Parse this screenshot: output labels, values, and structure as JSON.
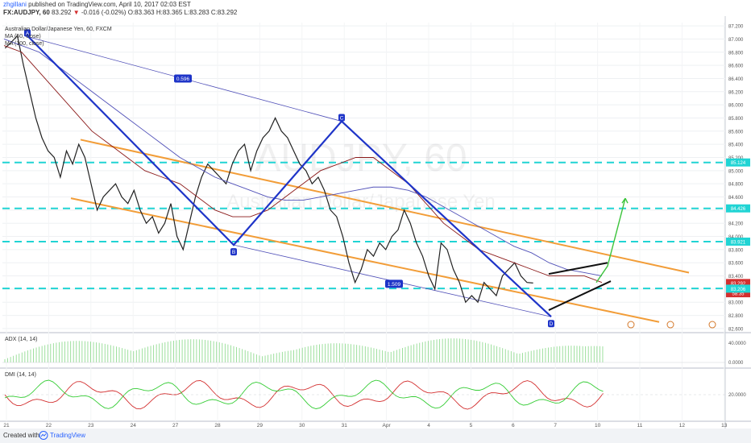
{
  "header": {
    "user": "zhgillani",
    "published_text": "published on TradingView.com, April 10, 2017 02:03 EST",
    "symbol_line": "FX:AUDJPY, 60",
    "price": "83.292",
    "change": "-0.016 (-0.02%)",
    "ohlc": "O:83.363 H:83.365 L:83.283 C:83.292"
  },
  "legend": {
    "instrument": "Australian Dollar/Japanese Yen, 60, FXCM",
    "ma1": "MA (50, close)",
    "ma2": "MA (100, close)"
  },
  "watermark": {
    "symbol": "AUDJPY, 60",
    "name": "Australian Dollar/Japanese Yen"
  },
  "footer": {
    "created_with": "Created with",
    "brand": "TradingView"
  },
  "colors": {
    "price": "#222222",
    "ma50": "#8b1a1a",
    "ma100": "#5050b8",
    "fib_line": "#5050b8",
    "channel": "#f29d38",
    "abcd": "#1e34c8",
    "triangle": "#111111",
    "projection": "#3cc43c",
    "level": "#20d4d4",
    "dmi_plus": "#33cc33",
    "dmi_minus": "#d32f2f",
    "adx": "#3bbf3b"
  },
  "chart_data": {
    "type": "line",
    "title": "Australian Dollar/Japanese Yen, 60, FXCM",
    "xlabel": "",
    "ylabel": "",
    "x_ticks": [
      "21",
      "22",
      "23",
      "24",
      "27",
      "28",
      "29",
      "30",
      "31",
      "Apr",
      "4",
      "5",
      "6",
      "7",
      "10",
      "11",
      "12",
      "13"
    ],
    "y_ticks": [
      "82.600",
      "82.800",
      "83.000",
      "83.200",
      "83.400",
      "83.600",
      "83.800",
      "84.000",
      "84.200",
      "84.400",
      "84.600",
      "84.800",
      "85.000",
      "85.200",
      "85.400",
      "85.600",
      "85.800",
      "86.000",
      "86.200",
      "86.400",
      "86.600",
      "86.800",
      "87.000",
      "87.200"
    ],
    "ylim": [
      82.55,
      87.25
    ],
    "series": [
      {
        "values": [
          86.86,
          86.95,
          87.05,
          86.6,
          86.2,
          85.8,
          85.5,
          85.3,
          85.2,
          84.9,
          85.3,
          85.1,
          85.4,
          85.2,
          84.8,
          84.4,
          84.6,
          84.7,
          84.8,
          84.6,
          84.5,
          84.7,
          84.4,
          84.2,
          84.3,
          84.05,
          84.2,
          84.5,
          84.0,
          83.8,
          84.2,
          84.6,
          84.9,
          85.1,
          85.0,
          84.9,
          84.8,
          85.1,
          85.3,
          85.4,
          85.0,
          85.3,
          85.5,
          85.6,
          85.8,
          85.6,
          85.5,
          85.3,
          85.1,
          85.0,
          84.8,
          84.9,
          84.7,
          84.4,
          84.3,
          84.0,
          83.6,
          83.3,
          83.5,
          83.8,
          83.7,
          83.9,
          83.8,
          84.0,
          84.1,
          84.4,
          84.2,
          83.9,
          83.7,
          83.4,
          83.2,
          83.9,
          83.8,
          83.5,
          83.3,
          83.0,
          83.1,
          83.0,
          83.3,
          83.2,
          83.1,
          83.4,
          83.5,
          83.6,
          83.4,
          83.3,
          83.292
        ]
      },
      {
        "values": [
          86.9,
          86.8,
          86.5,
          86.2,
          85.9,
          85.6,
          85.4,
          85.2,
          85.0,
          84.9,
          84.8,
          84.6,
          84.4,
          84.3,
          84.3,
          84.4,
          84.6,
          84.8,
          85.0,
          85.1,
          85.2,
          85.2,
          85.0,
          84.8,
          84.5,
          84.2,
          84.0,
          83.8,
          83.7,
          83.6,
          83.5,
          83.4,
          83.4,
          83.4,
          83.3
        ]
      },
      {
        "values": [
          87.0,
          86.9,
          86.8,
          86.6,
          86.4,
          86.2,
          86.0,
          85.8,
          85.6,
          85.4,
          85.2,
          85.05,
          84.9,
          84.8,
          84.7,
          84.6,
          84.55,
          84.55,
          84.6,
          84.65,
          84.7,
          84.75,
          84.75,
          84.7,
          84.6,
          84.45,
          84.3,
          84.15,
          84.0,
          83.85,
          83.75,
          83.6,
          83.5,
          83.45,
          83.4
        ]
      }
    ],
    "horizontal_levels": [
      {
        "label": "85.124",
        "value": 85.124
      },
      {
        "label": "84.426",
        "value": 84.426
      },
      {
        "label": "83.921",
        "value": 83.921
      },
      {
        "value": 83.21
      },
      {
        "label": "83.292",
        "value": 83.292
      },
      {
        "label": "83.206",
        "value": 83.206
      }
    ],
    "price_labels": [
      {
        "text": "84.426",
        "value": 84.426
      },
      {
        "text": "83.921",
        "value": 83.921
      },
      {
        "text": "85.124",
        "value": 85.124
      },
      {
        "text": "83.292",
        "value": 83.292
      },
      {
        "text": "58:35",
        "value": 83.21
      },
      {
        "text": "83.206",
        "value": 83.206
      }
    ],
    "pattern_points": [
      "A",
      "B",
      "C",
      "D"
    ],
    "fib_ratios": [
      "0.596",
      "1.509"
    ],
    "indicators": [
      {
        "label": "ADX (14, 14)",
        "y_ticks": [
          "40.0000",
          "0.0000"
        ]
      },
      {
        "label": "DMI (14, 14)",
        "y_ticks": [
          "20.0000"
        ]
      }
    ]
  }
}
